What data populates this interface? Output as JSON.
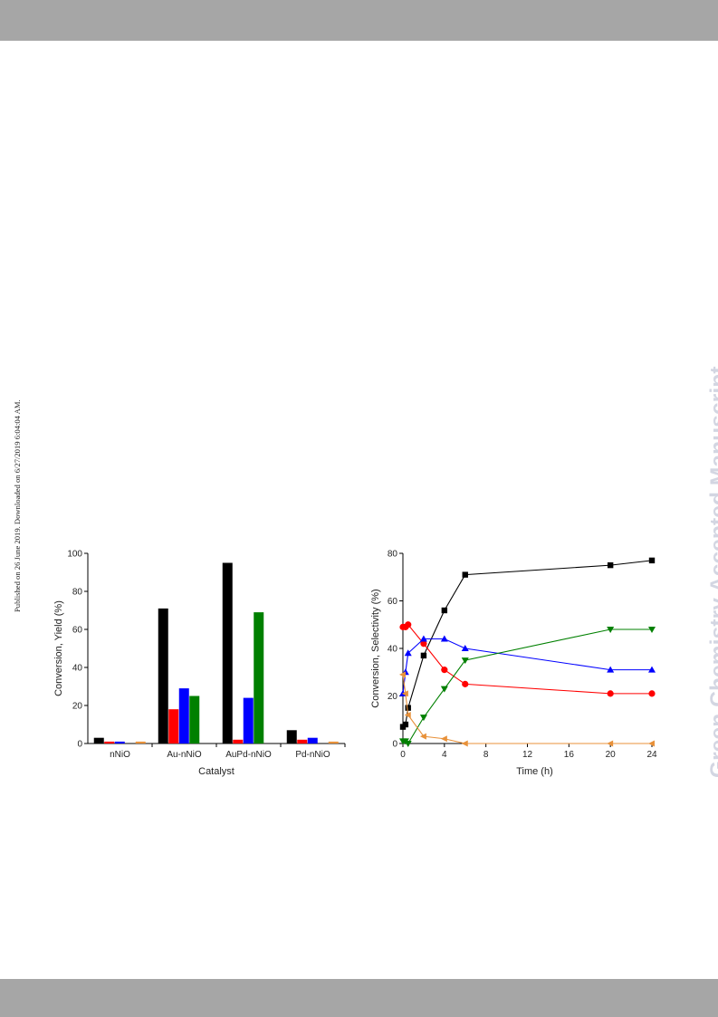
{
  "page": {
    "side_note": "Published on 26 June 2019. Downloaded on 6/27/2019 6:04:04 AM.",
    "watermark": "Green Chemistry Accepted Manuscript"
  },
  "chart_data": [
    {
      "type": "bar",
      "title": "",
      "xlabel": "Catalyst",
      "ylabel": "Conversion, Yield (%)",
      "ylim": [
        0,
        100
      ],
      "yticks": [
        0,
        20,
        40,
        60,
        80,
        100
      ],
      "categories": [
        "nNiO",
        "Au-nNiO",
        "AuPd-nNiO",
        "Pd-nNiO"
      ],
      "series": [
        {
          "color": "#000000",
          "values": [
            3,
            71,
            95,
            7
          ]
        },
        {
          "color": "#ff0000",
          "values": [
            1,
            18,
            2,
            2
          ]
        },
        {
          "color": "#0000ff",
          "values": [
            1,
            29,
            24,
            3
          ]
        },
        {
          "color": "#008000",
          "values": [
            0,
            25,
            69,
            0
          ]
        },
        {
          "color": "#e8913a",
          "values": [
            1,
            0,
            0,
            1
          ]
        }
      ],
      "grid": false,
      "legend": "none"
    },
    {
      "type": "line",
      "title": "",
      "xlabel": "Time (h)",
      "ylabel": "Conversion, Selectivity (%)",
      "xlim": [
        0,
        24
      ],
      "ylim": [
        0,
        80
      ],
      "xticks": [
        0,
        4,
        8,
        12,
        16,
        20,
        24
      ],
      "yticks": [
        0,
        20,
        40,
        60,
        80
      ],
      "series": [
        {
          "color": "#000000",
          "marker": "square",
          "x": [
            0,
            0.25,
            0.5,
            2,
            4,
            6,
            20,
            24
          ],
          "y": [
            7,
            8,
            15,
            37,
            56,
            71,
            75,
            77
          ]
        },
        {
          "color": "#ff0000",
          "marker": "circle",
          "x": [
            0,
            0.25,
            0.5,
            2,
            4,
            6,
            20,
            24
          ],
          "y": [
            49,
            49,
            50,
            42,
            31,
            25,
            21,
            21
          ]
        },
        {
          "color": "#0000ff",
          "marker": "triangle-up",
          "x": [
            0,
            0.25,
            0.5,
            2,
            4,
            6,
            20,
            24
          ],
          "y": [
            21,
            30,
            38,
            44,
            44,
            40,
            31,
            31
          ]
        },
        {
          "color": "#008000",
          "marker": "triangle-down",
          "x": [
            0,
            0.25,
            0.5,
            2,
            4,
            6,
            20,
            24
          ],
          "y": [
            1,
            1,
            0,
            11,
            23,
            35,
            48,
            48
          ]
        },
        {
          "color": "#e8913a",
          "marker": "diamond",
          "x": [
            0,
            0.25,
            0.5,
            2,
            4,
            6,
            20,
            24
          ],
          "y": [
            29,
            21,
            12,
            3,
            2,
            0,
            0,
            0
          ]
        }
      ],
      "grid": false,
      "legend": "none"
    }
  ]
}
